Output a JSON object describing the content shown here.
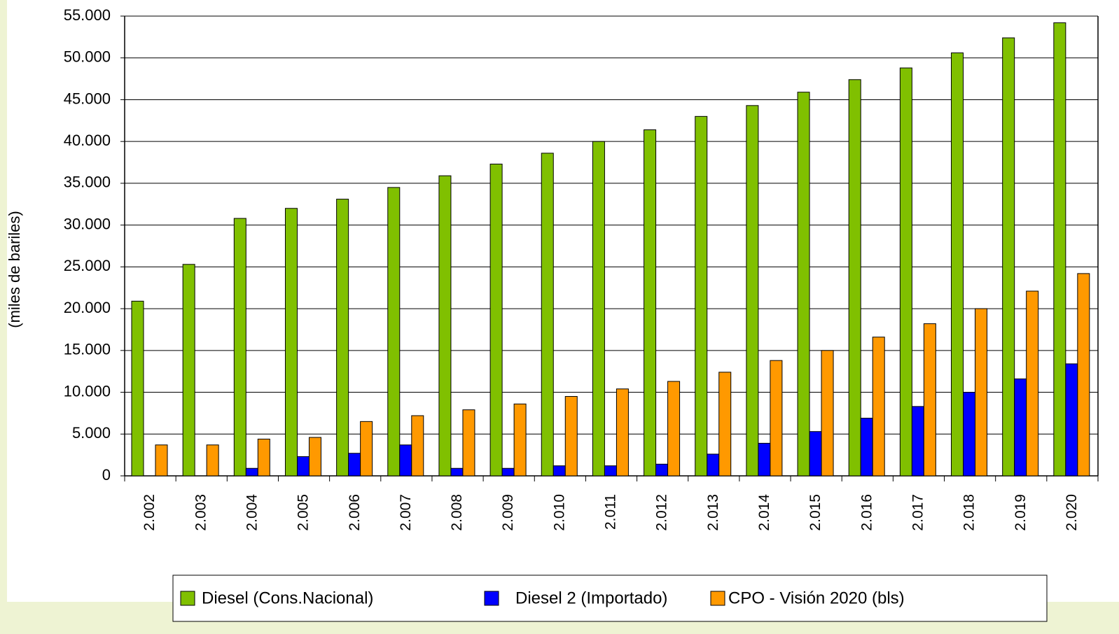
{
  "chart_data": {
    "type": "bar",
    "y_axis_label": "(miles de bariles)",
    "categories": [
      "2.002",
      "2.003",
      "2.004",
      "2.005",
      "2.006",
      "2.007",
      "2.008",
      "2.009",
      "2.010",
      "2.011",
      "2.012",
      "2.013",
      "2.014",
      "2.015",
      "2.016",
      "2.017",
      "2.018",
      "2.019",
      "2.020"
    ],
    "series": [
      {
        "name": "Diesel (Cons.Nacional)",
        "color": "#80c000",
        "values": [
          20900,
          25300,
          30800,
          32000,
          33100,
          34500,
          35900,
          37300,
          38600,
          40000,
          41400,
          43000,
          44300,
          45900,
          47400,
          48800,
          50600,
          52400,
          54200
        ]
      },
      {
        "name": "Diesel 2  (Importado)",
        "color": "#0000ff",
        "values": [
          0,
          0,
          900,
          2300,
          2700,
          3700,
          900,
          900,
          1200,
          1200,
          1400,
          2600,
          3900,
          5300,
          6900,
          8300,
          10000,
          11600,
          13400
        ]
      },
      {
        "name": "CPO - Visión 2020 (bls)",
        "color": "#ff9900",
        "values": [
          3700,
          3700,
          4400,
          4600,
          6500,
          7200,
          7900,
          8600,
          9500,
          10400,
          11300,
          12400,
          13800,
          15000,
          16600,
          18200,
          20000,
          22100,
          24200
        ]
      }
    ],
    "ylim": [
      0,
      55000
    ],
    "yticks": [
      0,
      {
        "value": 5000,
        "label": "5.000"
      },
      {
        "value": 10000,
        "label": "10.000"
      },
      {
        "value": 15000,
        "label": "15.000"
      },
      {
        "value": 20000,
        "label": "20.000"
      },
      {
        "value": 25000,
        "label": "25.000"
      },
      {
        "value": 30000,
        "label": "30.000"
      },
      {
        "value": 35000,
        "label": "35.000"
      },
      {
        "value": 40000,
        "label": "40.000"
      },
      {
        "value": 45000,
        "label": "45.000"
      },
      {
        "value": 50000,
        "label": "50.000"
      },
      {
        "value": 55000,
        "label": "55.000"
      }
    ],
    "grid": true,
    "legend": "bottom"
  }
}
